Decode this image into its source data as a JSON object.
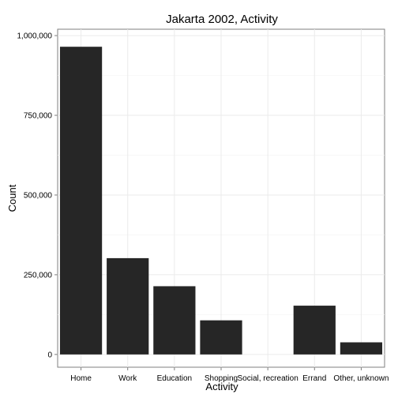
{
  "chart_data": {
    "type": "bar",
    "title": "Jakarta 2002, Activity",
    "xlabel": "Activity",
    "ylabel": "Count",
    "categories": [
      "Home",
      "Work",
      "Education",
      "Shopping",
      "Social, recreation",
      "Errand",
      "Other, unknown"
    ],
    "values": [
      965000,
      302000,
      214000,
      107000,
      0,
      153000,
      38000
    ],
    "ylim": [
      -40000,
      1020000
    ],
    "yticks": [
      0,
      250000,
      500000,
      750000,
      1000000
    ],
    "ytick_labels": [
      "0",
      "250,000",
      "500,000",
      "750,000",
      "1,000,000"
    ],
    "grid": true,
    "bar_color": "#262626"
  }
}
